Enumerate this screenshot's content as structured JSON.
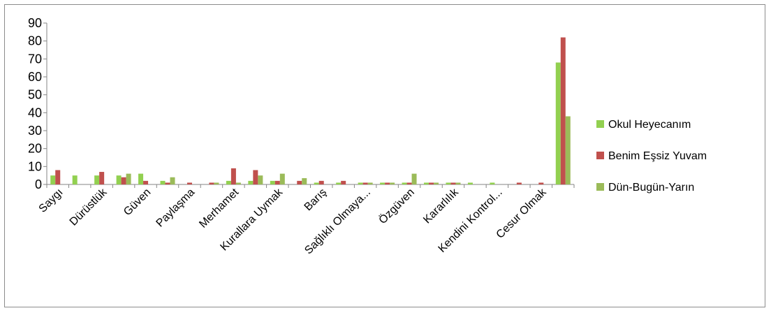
{
  "chart_data": {
    "type": "bar",
    "title": "",
    "xlabel": "",
    "ylabel": "",
    "ylim": [
      0,
      90
    ],
    "yticks": [
      0,
      10,
      20,
      30,
      40,
      50,
      60,
      70,
      80,
      90
    ],
    "grid": false,
    "legend_position": "right",
    "categories": [
      "Saygı",
      "",
      "Dürüstlük",
      "",
      "Güven",
      "",
      "Paylaşma",
      "",
      "Merhamet",
      "",
      "Kurallara Uymak",
      "",
      "Barış",
      "",
      "Sağlıklı Olmaya...",
      "",
      "Özgüven",
      "",
      "Kararlılık",
      "",
      "Kendini Kontrol...",
      "",
      "Cesur Olmak",
      ""
    ],
    "series": [
      {
        "name": "Okul Heyecanım",
        "color": "#92d050",
        "values": [
          5,
          5,
          5,
          5,
          6,
          2,
          0,
          0,
          2,
          2,
          2,
          0,
          1,
          1,
          1,
          1,
          1,
          1,
          1,
          1,
          1,
          0,
          0,
          68
        ]
      },
      {
        "name": "Benim Eşsiz Yuvam",
        "color": "#c0504d",
        "values": [
          8,
          0,
          7,
          4,
          2,
          1,
          1,
          1,
          9,
          8,
          2,
          2,
          2,
          2,
          1,
          1,
          1,
          1,
          1,
          0,
          0,
          1,
          1,
          82
        ]
      },
      {
        "name": "Dün-Bugün-Yarın",
        "color": "#9bbb59",
        "values": [
          0,
          0,
          0,
          6,
          0,
          4,
          0,
          1,
          1,
          5,
          6,
          3.5,
          0,
          0,
          1,
          1,
          6,
          1,
          1,
          0,
          0,
          0,
          0,
          38
        ]
      }
    ]
  }
}
